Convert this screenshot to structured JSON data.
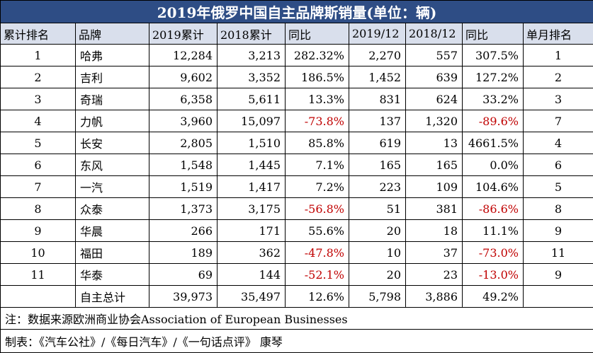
{
  "title": "2019年俄罗中国自主品牌斯销量(单位：辆)",
  "headers": [
    "累计排名",
    "品牌",
    "2019累计",
    "2018累计",
    "同比",
    "2019/12",
    "2018/12",
    "同比",
    "单月排名"
  ],
  "rows": [
    {
      "rank": "1",
      "brand": "哈弗",
      "y2019": "12,284",
      "y2018": "3,213",
      "yoy": "282.32%",
      "m2019": "2,270",
      "m2018": "557",
      "myoy": "307.5%",
      "mrank": "1"
    },
    {
      "rank": "2",
      "brand": "吉利",
      "y2019": "9,602",
      "y2018": "3,352",
      "yoy": "186.5%",
      "m2019": "1,452",
      "m2018": "639",
      "myoy": "127.2%",
      "mrank": "2"
    },
    {
      "rank": "3",
      "brand": "奇瑞",
      "y2019": "6,358",
      "y2018": "5,611",
      "yoy": "13.3%",
      "m2019": "831",
      "m2018": "624",
      "myoy": "33.2%",
      "mrank": "3"
    },
    {
      "rank": "4",
      "brand": "力帆",
      "y2019": "3,960",
      "y2018": "15,097",
      "yoy": "-73.8%",
      "m2019": "137",
      "m2018": "1,320",
      "myoy": "-89.6%",
      "mrank": "7"
    },
    {
      "rank": "5",
      "brand": "长安",
      "y2019": "2,805",
      "y2018": "1,510",
      "yoy": "85.8%",
      "m2019": "619",
      "m2018": "13",
      "myoy": "4661.5%",
      "mrank": "4"
    },
    {
      "rank": "6",
      "brand": "东风",
      "y2019": "1,548",
      "y2018": "1,445",
      "yoy": "7.1%",
      "m2019": "165",
      "m2018": "165",
      "myoy": "0.0%",
      "mrank": "6"
    },
    {
      "rank": "7",
      "brand": "一汽",
      "y2019": "1,519",
      "y2018": "1,417",
      "yoy": "7.2%",
      "m2019": "223",
      "m2018": "109",
      "myoy": "104.6%",
      "mrank": "5"
    },
    {
      "rank": "8",
      "brand": "众泰",
      "y2019": "1,373",
      "y2018": "3,175",
      "yoy": "-56.8%",
      "m2019": "51",
      "m2018": "381",
      "myoy": "-86.6%",
      "mrank": "8"
    },
    {
      "rank": "9",
      "brand": "华晨",
      "y2019": "266",
      "y2018": "171",
      "yoy": "55.6%",
      "m2019": "20",
      "m2018": "18",
      "myoy": "11.1%",
      "mrank": "9"
    },
    {
      "rank": "10",
      "brand": "福田",
      "y2019": "189",
      "y2018": "362",
      "yoy": "-47.8%",
      "m2019": "10",
      "m2018": "37",
      "myoy": "-73.0%",
      "mrank": "11"
    },
    {
      "rank": "11",
      "brand": "华泰",
      "y2019": "69",
      "y2018": "144",
      "yoy": "-52.1%",
      "m2019": "20",
      "m2018": "23",
      "myoy": "-13.0%",
      "mrank": "9"
    }
  ],
  "total": {
    "rank": "",
    "brand": "自主总计",
    "y2019": "39,973",
    "y2018": "35,497",
    "yoy": "12.6%",
    "m2019": "5,798",
    "m2018": "3,886",
    "myoy": "49.2%",
    "mrank": ""
  },
  "note": "注：数据来源欧洲商业协会Association of European Businesses",
  "credit": "制表：《汽车公社》/《每日汽车》/《一句话点评》 康琴",
  "colors": {
    "title_bg": "#2e4d85",
    "header_bg": "#d9dfec",
    "negative": "#c00000"
  }
}
